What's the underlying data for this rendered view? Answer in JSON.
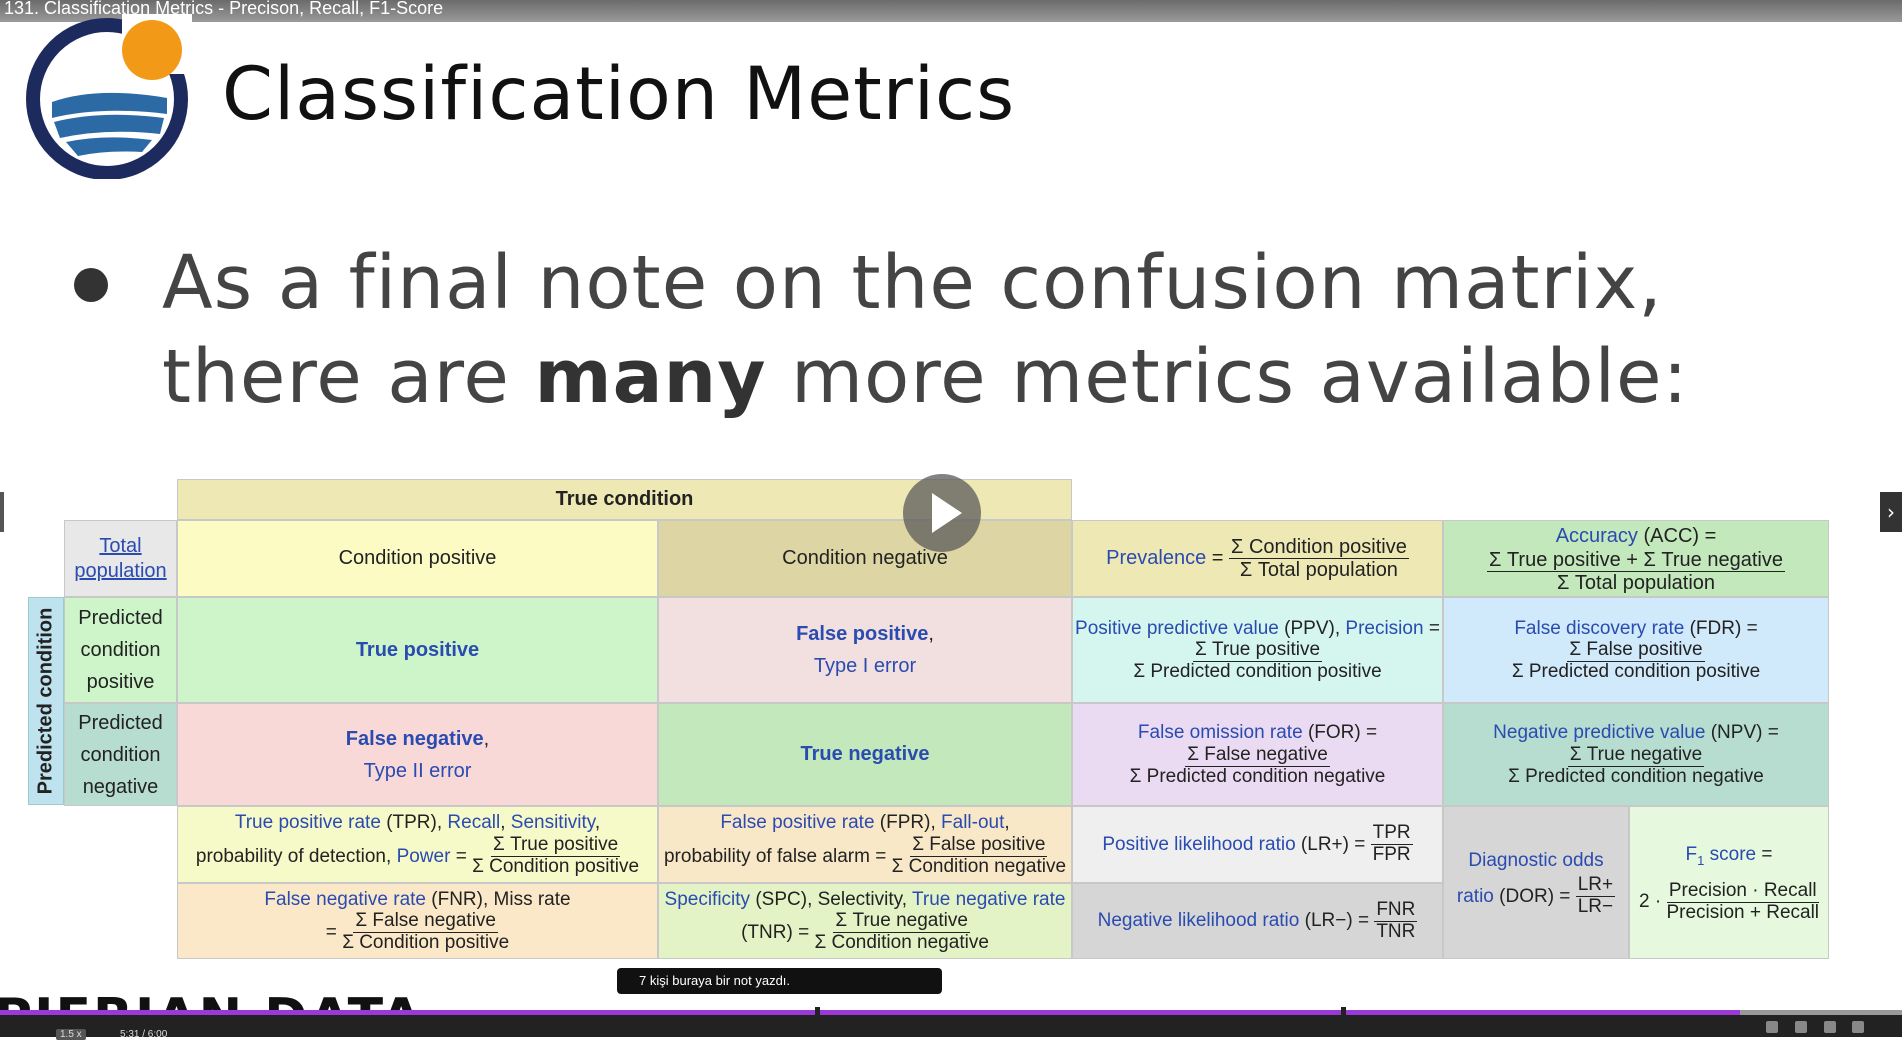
{
  "video": {
    "title": "131. Classification Metrics - Precison, Recall, F1-Score",
    "speed": "1.5 x",
    "time": "5:31 / 6:00",
    "progress_fraction": 0.915
  },
  "slide": {
    "title": "Classification Metrics",
    "bullet_pre1": "As a final note on the confusion matrix,",
    "bullet_pre2": "there are ",
    "bullet_bold": "many",
    "bullet_post": " more metrics available:"
  },
  "matrix": {
    "true_condition": "True condition",
    "total_population_1": "Total",
    "total_population_2": "population",
    "condition_positive": "Condition positive",
    "condition_negative": "Condition negative",
    "predicted_condition": "Predicted condition",
    "pred_pos": [
      "Predicted",
      "condition",
      "positive"
    ],
    "pred_neg": [
      "Predicted",
      "condition",
      "negative"
    ],
    "true_positive": "True positive",
    "false_positive": "False positive",
    "type1": "Type I error",
    "false_negative": "False negative",
    "type2": "Type II error",
    "true_negative": "True negative",
    "prevalence": {
      "name": "Prevalence",
      "eq": "=",
      "num": "Σ Condition positive",
      "den": "Σ Total population"
    },
    "accuracy": {
      "name": "Accuracy",
      "abbr": "(ACC) =",
      "num": "Σ True positive + Σ True negative",
      "den": "Σ Total population"
    },
    "ppv": {
      "name1": "Positive predictive value",
      "abbr": "(PPV),",
      "name2": "Precision",
      "eq": "=",
      "num": "Σ True positive",
      "den": "Σ Predicted condition positive"
    },
    "fdr": {
      "name": "False discovery rate",
      "abbr": "(FDR) =",
      "num": "Σ False positive",
      "den": "Σ Predicted condition positive"
    },
    "for": {
      "name": "False omission rate",
      "abbr": "(FOR) =",
      "num": "Σ False negative",
      "den": "Σ Predicted condition negative"
    },
    "npv": {
      "name": "Negative predictive value",
      "abbr": "(NPV) =",
      "num": "Σ True negative",
      "den": "Σ Predicted condition negative"
    },
    "tpr": {
      "name": "True positive rate",
      "abbr": "(TPR),",
      "recall": "Recall",
      "sens": "Sensitivity",
      "pre": "probability of detection,",
      "power": "Power",
      "eq": "=",
      "num": "Σ True positive",
      "den": "Σ Condition positive"
    },
    "fpr": {
      "name": "False positive rate",
      "abbr": "(FPR),",
      "fallout": "Fall-out",
      "pre": "probability of false alarm",
      "eq": "=",
      "num": "Σ False positive",
      "den": "Σ Condition negative"
    },
    "lrp": {
      "name": "Positive likelihood ratio",
      "abbr": "(LR+) =",
      "num": "TPR",
      "den": "FPR"
    },
    "dor": {
      "name1": "Diagnostic odds",
      "name2": "ratio",
      "abbr": "(DOR) =",
      "num": "LR+",
      "den": "LR−"
    },
    "f1": {
      "name": "F",
      "sub": "1",
      "name2": "score",
      "eq": "=",
      "pre": "2 ·",
      "num": "Precision · Recall",
      "den": "Precision + Recall"
    },
    "fnr": {
      "name": "False negative rate",
      "abbr": "(FNR), Miss rate",
      "eq": "=",
      "num": "Σ False negative",
      "den": "Σ Condition positive"
    },
    "spc": {
      "name": "Specificity",
      "abbr": "(SPC), Selectivity,",
      "tnr": "True negative rate",
      "pre": "(TNR) =",
      "num": "Σ True negative",
      "den": "Σ Condition negative"
    },
    "lrn": {
      "name": "Negative likelihood ratio",
      "abbr": "(LR−) =",
      "num": "FNR",
      "den": "TNR"
    }
  },
  "note": "7 kişi buraya bir not yazdı.",
  "brand": "PIERIAN DATA",
  "colors": {
    "yellow_light": "#fdfbc4",
    "olive": "#eee9b4",
    "tan": "#ddd6a4",
    "green_light": "#cdf5c9",
    "pink_light": "#f2e0e0",
    "pink": "#f8d9d8",
    "green": "#c2e8bc",
    "teal_light": "#d5f6ee",
    "blue_light": "#d0e9fb",
    "purple_light": "#eadbf2",
    "teal": "#b7ddd0",
    "gray_light": "#efefef",
    "gray": "#d6d6d6",
    "orange_light": "#fbe8c8",
    "accent": "#9b38d8"
  }
}
